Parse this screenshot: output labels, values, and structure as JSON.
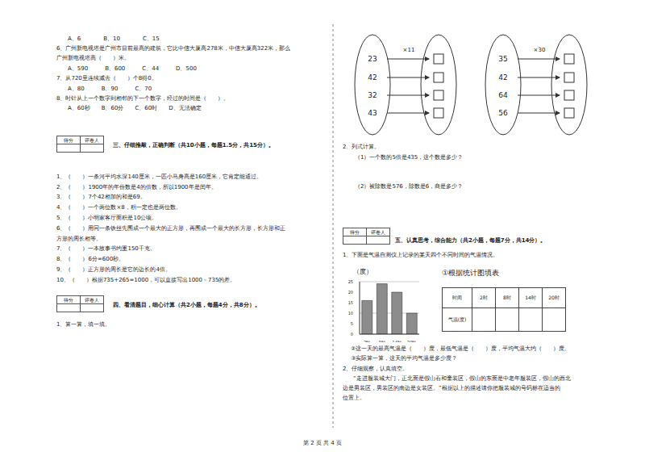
{
  "document": {
    "left": {
      "choices": [
        "A、6　　　　B、10　　　　C、15",
        "6、广州新电视塔是广州市目前最高的建筑，它比中信大厦高278米，中信大厦高322米，那么",
        "广州新电视塔高（　　）米。",
        "A、590　　　B、600　　　C、44　　　D、500",
        "7、从720里连续减去（　　）个8得0。",
        "A、80　　　B、90　　　C、70",
        "8、时针从上一个数字到相邻的下一个数字，经过的时间是（　　）。",
        "A、60秒　　B、60分　　C、60时　　D、无法确定"
      ],
      "section3": {
        "title": "三、仔细推敲，正确判断（共10小题，每题1.5分，共15分）。",
        "items": [
          "1、（　　）一条河平均水深140厘米，一匹小马身高是160厘米，它肯定能通过。",
          "2、（　　）1900年的年份数是4的倍数，所以1900年是闰年。",
          "3、（　　）7个42相加的和是69。",
          "4、（　　）一个两位数×8，积一定也是两位数。",
          "5、（　　）小明家客厅面积是10公顷。",
          "6、（　　）用同一条铁丝先围成一个最大的正方形，再围成一个最大的长方形，长方形和正",
          "方形的周长相等。",
          "7、（　　）一本故事书约重150千克。",
          "8、（　　）6分=600秒。",
          "9、（　　）正方形的周长是它的边长的4倍。",
          "10、（　　）根据735+265=1000，可以直接写出1000－735的差。"
        ]
      },
      "section4": {
        "title": "四、看清题目，细心计算（共2小题，每题4分，共8分）。",
        "q1": "1、算一算，填一填。"
      }
    },
    "score_box": [
      "得分",
      "评卷人"
    ],
    "right": {
      "multiply": [
        {
          "op": "×11",
          "inputs": [
            23,
            42,
            32,
            43
          ]
        },
        {
          "op": "×30",
          "inputs": [
            35,
            42,
            64,
            56
          ]
        }
      ],
      "q2": {
        "title": "2、列式计算。",
        "items": [
          "（1）一个数的5倍是435，这个数是多少？",
          "（2）被除数是576，除数是6，商是多少？"
        ]
      },
      "section5": {
        "title": "五、认真思考，综合能力（共2小题，每题7分，共14分）。",
        "q1": "1、下面是气温自测仪上记录的某天四个不同时间的气温情况。",
        "table_title": "①根据统计图填表",
        "table": {
          "header": [
            "时间",
            "2时",
            "8时",
            "14时",
            "20时"
          ],
          "row_labels": [
            "气温(度)"
          ]
        },
        "questions": [
          "②这一天的最高气温是（　　）度，最低气温是（　　）度，平均气温大约（　　）度。",
          "③实际算一算，这天的平均气温是多少度？"
        ],
        "q2": {
          "title": "2、仔细观察，认真填空。",
          "lines": [
            "“走进服装城大门，正北面是假山石和童装区，假山的东面是中老年服装区，假山的西北",
            "边是男装区，男装区的南边是女装区。”根据以上的描述请你把服装城的号码标在适当的",
            "位置上。"
          ]
        }
      }
    },
    "footer": "第 2 页 共 4 页"
  },
  "chart_data": {
    "type": "bar",
    "y_label": "（度）",
    "categories": [
      "2时",
      "8时",
      "14时",
      "20时"
    ],
    "values": [
      16,
      24,
      20,
      10
    ],
    "color": "#8c8c8c",
    "ylim": [
      0,
      25
    ],
    "yticks": [
      0,
      5,
      10,
      15,
      20,
      25
    ],
    "grid": true
  }
}
